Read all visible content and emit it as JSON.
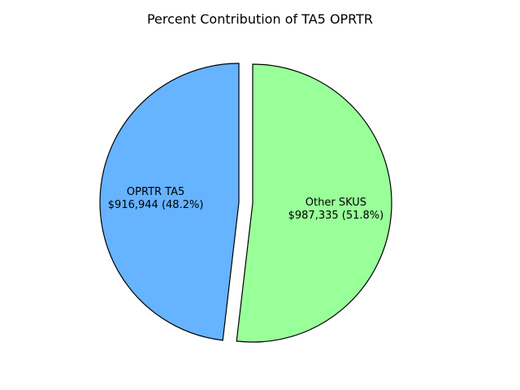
{
  "chart_data": {
    "type": "pie",
    "title": "Percent Contribution of TA5 OPRTR",
    "slices": [
      {
        "name": "OPRTR TA5",
        "value": 916944,
        "percent": 48.2,
        "value_text": "$916,944 (48.2%)",
        "color": "#66b3ff",
        "exploded": true
      },
      {
        "name": "Other SKUS",
        "value": 987335,
        "percent": 51.8,
        "value_text": "$987,335 (51.8%)",
        "color": "#99ff99",
        "exploded": false
      }
    ]
  }
}
